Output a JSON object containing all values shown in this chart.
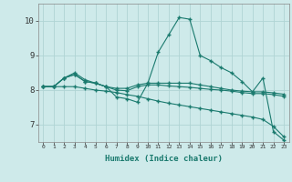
{
  "xlabel": "Humidex (Indice chaleur)",
  "background_color": "#ceeaea",
  "grid_color": "#b0d4d4",
  "line_color": "#1a7a6e",
  "xlim": [
    -0.5,
    23.5
  ],
  "ylim": [
    6.5,
    10.5
  ],
  "yticks": [
    7,
    8,
    9,
    10
  ],
  "xticks": [
    0,
    1,
    2,
    3,
    4,
    5,
    6,
    7,
    8,
    9,
    10,
    11,
    12,
    13,
    14,
    15,
    16,
    17,
    18,
    19,
    20,
    21,
    22,
    23
  ],
  "series": [
    [
      8.1,
      8.1,
      8.35,
      8.5,
      8.3,
      8.2,
      8.1,
      7.8,
      7.75,
      7.65,
      8.2,
      9.1,
      9.6,
      10.1,
      10.05,
      9.0,
      8.85,
      8.65,
      8.5,
      8.25,
      7.95,
      8.35,
      6.8,
      6.55
    ],
    [
      8.1,
      8.1,
      8.35,
      8.45,
      8.25,
      8.2,
      8.1,
      8.05,
      8.05,
      8.15,
      8.2,
      8.2,
      8.2,
      8.2,
      8.2,
      8.15,
      8.1,
      8.05,
      8.0,
      7.97,
      7.95,
      7.95,
      7.92,
      7.88
    ],
    [
      8.1,
      8.1,
      8.35,
      8.45,
      8.25,
      8.2,
      8.1,
      8.0,
      7.98,
      8.1,
      8.15,
      8.15,
      8.12,
      8.1,
      8.08,
      8.05,
      8.02,
      8.0,
      7.97,
      7.93,
      7.9,
      7.9,
      7.87,
      7.82
    ],
    [
      8.1,
      8.1,
      8.1,
      8.1,
      8.05,
      8.0,
      7.97,
      7.93,
      7.87,
      7.82,
      7.75,
      7.68,
      7.62,
      7.57,
      7.52,
      7.47,
      7.42,
      7.37,
      7.32,
      7.27,
      7.22,
      7.15,
      6.95,
      6.65
    ]
  ]
}
